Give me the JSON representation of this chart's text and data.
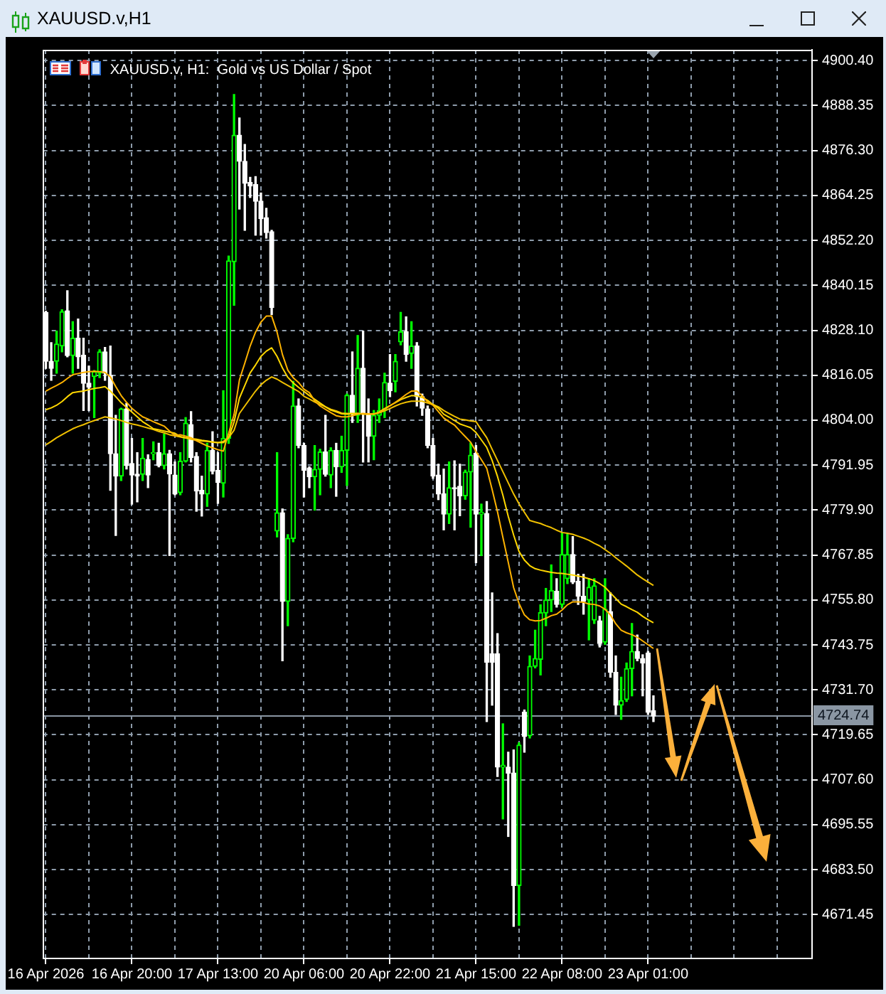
{
  "chart_data": {
    "type": "candlestick",
    "title": "XAUUSD.v,H1",
    "subtitle": "XAUUSD.v, H1:  Gold vs US Dollar / Spot",
    "categories": [
      "16 Apr 2026",
      null,
      null,
      null,
      null,
      null,
      null,
      null,
      null,
      null,
      null,
      null,
      null,
      null,
      null,
      null,
      "16 Apr 20:00",
      null,
      null,
      null,
      null,
      null,
      null,
      null,
      null,
      null,
      null,
      null,
      null,
      null,
      null,
      null,
      "17 Apr 13:00",
      null,
      null,
      null,
      null,
      null,
      null,
      null,
      null,
      null,
      null,
      null,
      null,
      null,
      null,
      null,
      "20 Apr 06:00",
      null,
      null,
      null,
      null,
      null,
      null,
      null,
      null,
      null,
      null,
      null,
      null,
      null,
      null,
      null,
      "20 Apr 22:00",
      null,
      null,
      null,
      null,
      null,
      null,
      null,
      null,
      null,
      null,
      null,
      null,
      null,
      null,
      null,
      "21 Apr 15:00",
      null,
      null,
      null,
      null,
      null,
      null,
      null,
      null,
      null,
      null,
      null,
      null,
      null,
      null,
      null,
      "22 Apr 08:00",
      null,
      null,
      null,
      null,
      null,
      null,
      null,
      null,
      null,
      null,
      null,
      null,
      null,
      null,
      null,
      "23 Apr 01:00",
      null
    ],
    "colors": [
      "#ffffff",
      "#ffffff",
      "#00ff00",
      "#00ff00",
      "#ffffff",
      "#00ff00",
      "#ffffff",
      "#ffffff",
      "#ffffff",
      "#00ff00",
      "#00ff00",
      "#ffffff",
      "#ffffff",
      "#ffffff",
      "#00ff00",
      "#ffffff",
      "#ffffff",
      "#ffffff",
      "#00ff00",
      "#ffffff",
      "#00ff00",
      "#ffffff",
      "#00ff00",
      "#ffffff",
      "#ffffff",
      "#00ff00",
      "#00ff00",
      "#ffffff",
      "#ffffff",
      "#ffffff",
      "#00ff00",
      "#ffffff",
      "#ffffff",
      "#00ff00",
      "#00ff00",
      "#00ff00",
      "#ffffff",
      "#ffffff",
      "#ffffff",
      "#ffffff",
      "#ffffff",
      "#ffffff",
      "#ffffff",
      "#00ff00",
      "#ffffff",
      "#00ff00",
      "#00ff00",
      "#ffffff",
      "#ffffff",
      "#ffffff",
      "#00ff00",
      "#00ff00",
      "#ffffff",
      "#00ff00",
      "#ffffff",
      "#00ff00",
      "#00ff00",
      "#ffffff",
      "#00ff00",
      "#ffffff",
      "#ffffff",
      "#00ff00",
      "#00ff00",
      "#00ff00",
      "#ffffff",
      "#00ff00",
      "#00ff00",
      "#ffffff",
      "#00ff00",
      "#ffffff",
      "#ffffff",
      "#ffffff",
      "#ffffff",
      "#ffffff",
      "#ffffff",
      "#00ff00",
      "#ffffff",
      "#ffffff",
      "#00ff00",
      "#00ff00",
      "#ffffff",
      "#00ff00",
      "#ffffff",
      "#ffffff",
      "#ffffff",
      "#00ff00",
      "#ffffff",
      "#ffffff",
      "#00ff00",
      "#ffffff",
      "#00ff00",
      "#00ff00",
      "#00ff00",
      "#00ff00",
      "#00ff00",
      "#ffffff",
      "#00ff00",
      "#00ff00",
      "#ffffff",
      "#ffffff",
      "#ffffff",
      "#00ff00",
      "#00ff00",
      "#ffffff",
      "#00ff00",
      "#ffffff",
      "#ffffff",
      "#00ff00",
      "#00ff00",
      "#00ff00",
      "#ffffff",
      "#ffffff",
      "#ffffff",
      "#ffffff"
    ],
    "ohlc": [
      [
        4832.9,
        4833.2,
        4817.9,
        4819.8
      ],
      [
        4819.8,
        4824.8,
        4814.7,
        4817.9
      ],
      [
        4819.8,
        4827.9,
        4816.6,
        4824.4
      ],
      [
        4823.9,
        4833.6,
        4822.3,
        4833.1
      ],
      [
        4833.3,
        4838.7,
        4821.0,
        4821.3
      ],
      [
        4821.3,
        4830.4,
        4816.6,
        4826.0
      ],
      [
        4826.0,
        4831.1,
        4817.9,
        4821.0
      ],
      [
        4821.4,
        4826.0,
        4806.6,
        4813.9
      ],
      [
        4813.9,
        4818.5,
        4806.6,
        4812.9
      ],
      [
        4815.7,
        4817.3,
        4804.7,
        4817.0
      ],
      [
        4816.6,
        4822.9,
        4815.4,
        4822.3
      ],
      [
        4822.3,
        4823.5,
        4814.7,
        4816.6
      ],
      [
        4816.0,
        4823.9,
        4785.2,
        4795.0
      ],
      [
        4795.0,
        4805.3,
        4773.1,
        4789.0
      ],
      [
        4789.0,
        4807.2,
        4787.8,
        4807.0
      ],
      [
        4807.0,
        4808.5,
        4790.9,
        4791.8
      ],
      [
        4792.4,
        4799.1,
        4781.5,
        4789.3
      ],
      [
        4789.5,
        4795.3,
        4782.1,
        4789.0
      ],
      [
        4789.5,
        4799.1,
        4787.8,
        4793.8
      ],
      [
        4793.5,
        4794.7,
        4785.9,
        4789.3
      ],
      [
        4795.0,
        4798.2,
        4793.4,
        4795.3
      ],
      [
        4795.3,
        4797.8,
        4791.5,
        4791.8
      ],
      [
        4791.8,
        4800.3,
        4790.9,
        4795.0
      ],
      [
        4795.0,
        4795.9,
        4767.7,
        4789.6
      ],
      [
        4789.3,
        4792.8,
        4784.0,
        4784.2
      ],
      [
        4784.6,
        4795.3,
        4784.0,
        4793.0
      ],
      [
        4793.0,
        4804.7,
        4792.8,
        4803.2
      ],
      [
        4802.8,
        4806.3,
        4792.8,
        4794.0
      ],
      [
        4794.3,
        4795.3,
        4779.6,
        4785.0
      ],
      [
        4785.2,
        4789.0,
        4778.3,
        4784.2
      ],
      [
        4784.2,
        4797.8,
        4780.9,
        4795.9
      ],
      [
        4795.9,
        4800.9,
        4789.6,
        4790.3
      ],
      [
        4790.5,
        4795.3,
        4781.7,
        4787.3
      ],
      [
        4787.1,
        4811.9,
        4783.4,
        4799.1
      ],
      [
        4799.1,
        4848.0,
        4797.8,
        4846.7
      ],
      [
        4846.5,
        4891.3,
        4834.8,
        4880.4
      ],
      [
        4880.4,
        4885.0,
        4860.6,
        4873.4
      ],
      [
        4873.4,
        4877.9,
        4854.9,
        4867.5
      ],
      [
        4867.7,
        4869.1,
        4863.7,
        4866.8
      ],
      [
        4867.2,
        4869.3,
        4853.6,
        4862.7
      ],
      [
        4862.7,
        4864.9,
        4853.6,
        4858.0
      ],
      [
        4858.3,
        4860.8,
        4852.8,
        4854.3
      ],
      [
        4854.5,
        4854.9,
        4832.3,
        4834.2
      ],
      [
        4774.3,
        4795.3,
        4772.7,
        4779.2
      ],
      [
        4779.2,
        4780.2,
        4739.5,
        4755.4
      ],
      [
        4755.4,
        4773.3,
        4748.9,
        4772.3
      ],
      [
        4772.3,
        4814.4,
        4771.4,
        4807.8
      ],
      [
        4807.8,
        4809.7,
        4796.6,
        4797.2
      ],
      [
        4797.2,
        4797.8,
        4783.4,
        4790.6
      ],
      [
        4791.2,
        4791.5,
        4785.9,
        4788.8
      ],
      [
        4788.8,
        4797.2,
        4779.9,
        4790.8
      ],
      [
        4790.8,
        4796.2,
        4784.0,
        4795.5
      ],
      [
        4795.5,
        4805.3,
        4789.0,
        4789.5
      ],
      [
        4789.3,
        4796.6,
        4785.9,
        4795.9
      ],
      [
        4795.9,
        4797.8,
        4783.6,
        4791.5
      ],
      [
        4791.5,
        4799.7,
        4790.0,
        4795.9
      ],
      [
        4795.9,
        4811.0,
        4786.5,
        4810.7
      ],
      [
        4810.7,
        4822.3,
        4803.4,
        4805.6
      ],
      [
        4805.3,
        4826.7,
        4803.4,
        4817.9
      ],
      [
        4817.9,
        4827.9,
        4792.8,
        4806.0
      ],
      [
        4805.7,
        4809.7,
        4792.8,
        4799.7
      ],
      [
        4799.7,
        4806.6,
        4793.4,
        4805.3
      ],
      [
        4805.3,
        4809.7,
        4803.4,
        4806.6
      ],
      [
        4806.6,
        4816.6,
        4804.7,
        4814.1
      ],
      [
        4813.9,
        4821.6,
        4810.3,
        4811.9
      ],
      [
        4814.4,
        4821.6,
        4811.6,
        4819.8
      ],
      [
        4825.0,
        4832.9,
        4824.2,
        4827.7
      ],
      [
        4827.7,
        4831.7,
        4819.8,
        4821.6
      ],
      [
        4821.9,
        4830.4,
        4817.9,
        4823.9
      ],
      [
        4823.9,
        4824.8,
        4807.8,
        4810.3
      ],
      [
        4810.3,
        4811.0,
        4805.3,
        4807.2
      ],
      [
        4807.0,
        4807.8,
        4796.6,
        4797.2
      ],
      [
        4797.2,
        4799.1,
        4788.4,
        4789.0
      ],
      [
        4789.3,
        4792.2,
        4782.7,
        4784.2
      ],
      [
        4784.3,
        4790.9,
        4774.6,
        4778.8
      ],
      [
        4778.8,
        4792.8,
        4776.3,
        4785.9
      ],
      [
        4785.9,
        4793.1,
        4774.6,
        4785.6
      ],
      [
        4786.3,
        4792.2,
        4778.4,
        4783.7
      ],
      [
        4783.7,
        4790.6,
        4782.8,
        4790.1
      ],
      [
        4790.1,
        4797.9,
        4775.3,
        4794.6
      ],
      [
        4795.1,
        4797.2,
        4765.8,
        4778.8
      ],
      [
        4778.8,
        4781.5,
        4767.7,
        4779.3
      ],
      [
        4779.0,
        4782.2,
        4723.2,
        4739.1
      ],
      [
        4741.4,
        4757.7,
        4727.6,
        4739.1
      ],
      [
        4741.4,
        4746.8,
        4708.5,
        4711.0
      ],
      [
        4711.0,
        4722.6,
        4697.1,
        4711.5
      ],
      [
        4711.0,
        4715.0,
        4692.4,
        4709.4
      ],
      [
        4709.4,
        4715.6,
        4668.3,
        4679.2
      ],
      [
        4679.2,
        4717.5,
        4668.6,
        4716.9
      ],
      [
        4725.7,
        4726.3,
        4715.0,
        4719.2
      ],
      [
        4719.4,
        4740.8,
        4718.8,
        4738.0
      ],
      [
        4738.0,
        4747.7,
        4737.6,
        4740.1
      ],
      [
        4739.9,
        4754.5,
        4735.7,
        4752.4
      ],
      [
        4752.3,
        4758.9,
        4748.9,
        4755.8
      ],
      [
        4755.8,
        4765.2,
        4752.7,
        4758.3
      ],
      [
        4758.1,
        4761.5,
        4753.9,
        4754.6
      ],
      [
        4754.6,
        4773.8,
        4753.9,
        4768.0
      ],
      [
        4761.5,
        4773.4,
        4760.2,
        4768.0
      ],
      [
        4768.0,
        4772.8,
        4760.2,
        4760.6
      ],
      [
        4760.8,
        4762.7,
        4754.6,
        4756.8
      ],
      [
        4756.8,
        4762.7,
        4752.0,
        4755.4
      ],
      [
        4755.8,
        4761.5,
        4745.1,
        4759.2
      ],
      [
        4750.4,
        4761.5,
        4749.5,
        4759.6
      ],
      [
        4750.2,
        4751.4,
        4743.2,
        4744.1
      ],
      [
        4744.5,
        4761.5,
        4743.9,
        4753.3
      ],
      [
        4752.7,
        4757.7,
        4735.1,
        4736.4
      ],
      [
        4736.4,
        4740.8,
        4725.1,
        4727.6
      ],
      [
        4727.6,
        4735.1,
        4723.8,
        4728.8
      ],
      [
        4729.1,
        4738.9,
        4728.6,
        4737.4
      ],
      [
        4737.4,
        4749.5,
        4730.1,
        4742.0
      ],
      [
        4742.0,
        4746.4,
        4739.5,
        4740.1
      ],
      [
        4740.1,
        4741.1,
        4730.1,
        4738.9
      ],
      [
        4741.6,
        4742.0,
        4725.1,
        4725.7
      ],
      [
        4726.1,
        4730.1,
        4723.2,
        4724.7
      ]
    ],
    "series": [
      {
        "type": "line",
        "color": "#ffb300",
        "values": [
          4811.8,
          4812.6,
          4813.3,
          4814.1,
          4815.2,
          4816.2,
          4816.5,
          4816.8,
          4817.0,
          4817.1,
          4817.0,
          4816.8,
          4815.6,
          4813.0,
          4810.6,
          4808.8,
          4807.2,
          4806.0,
          4804.9,
          4804.3,
          4803.6,
          4803.0,
          4802.4,
          4801.1,
          4799.9,
          4800.1,
          4799.7,
          4799.3,
          4798.5,
          4797.8,
          4797.1,
          4796.6,
          4796.1,
          4795.7,
          4800.5,
          4805.5,
          4814.8,
          4819.3,
          4823.9,
          4827.6,
          4830.3,
          4831.9,
          4831.9,
          4827.6,
          4821.6,
          4817.4,
          4815.4,
          4814.1,
          4812.3,
          4811.4,
          4809.2,
          4807.8,
          4806.9,
          4806.0,
          4805.2,
          4804.9,
          4804.9,
          4805.2,
          4805.6,
          4805.8,
          4805.7,
          4805.6,
          4806.0,
          4806.9,
          4807.8,
          4808.8,
          4809.8,
          4810.9,
          4811.8,
          4811.8,
          4810.5,
          4808.9,
          4808.0,
          4806.3,
          4804.6,
          4803.6,
          4802.7,
          4801.1,
          4799.6,
          4798.1,
          4795.6,
          4793.4,
          4791.1,
          4785.4,
          4779.4,
          4772.6,
          4765.9,
          4759.1,
          4754.9,
          4751.8,
          4750.5,
          4750.2,
          4750.3,
          4750.9,
          4751.6,
          4752.0,
          4753.1,
          4754.5,
          4755.3,
          4755.3,
          4755.2,
          4754.7,
          4754.6,
          4754.2,
          4753.3,
          4751.8,
          4749.4,
          4747.7,
          4747.0,
          4746.5,
          4745.8,
          4744.8,
          4743.8,
          4742.8
        ]
      },
      {
        "type": "line",
        "color": "#ffd700",
        "values": [
          4806.8,
          4807.3,
          4808.0,
          4809.0,
          4810.3,
          4811.4,
          4811.6,
          4811.8,
          4812.2,
          4812.5,
          4812.7,
          4813.0,
          4811.8,
          4810.3,
          4808.7,
          4807.4,
          4806.2,
          4804.9,
          4803.6,
          4802.7,
          4801.7,
          4801.4,
          4801.1,
          4800.8,
          4800.5,
          4799.6,
          4799.3,
          4799.1,
          4798.9,
          4798.6,
          4798.4,
          4798.2,
          4798.0,
          4798.0,
          4799.3,
          4803.5,
          4809.9,
          4813.3,
          4816.7,
          4818.8,
          4821.1,
          4822.5,
          4823.4,
          4821.1,
          4818.0,
          4815.5,
          4814.0,
          4812.8,
          4811.7,
          4810.6,
          4809.6,
          4808.6,
          4807.6,
          4806.7,
          4806.2,
          4805.7,
          4805.6,
          4805.7,
          4805.8,
          4805.7,
          4805.6,
          4805.6,
          4806.2,
          4807.1,
          4807.9,
          4808.7,
          4809.5,
          4810.1,
          4810.6,
          4810.5,
          4810.1,
          4809.3,
          4808.2,
          4807.2,
          4805.6,
          4804.8,
          4803.9,
          4803.0,
          4802.5,
          4802.0,
          4800.7,
          4798.7,
          4796.7,
          4793.2,
          4788.9,
          4783.9,
          4778.2,
          4773.2,
          4768.8,
          4766.5,
          4765.0,
          4764.2,
          4763.8,
          4763.5,
          4763.2,
          4763.0,
          4762.9,
          4762.7,
          4762.5,
          4762.2,
          4761.9,
          4761.5,
          4761.0,
          4760.2,
          4759.2,
          4757.7,
          4756.2,
          4754.7,
          4754.0,
          4753.2,
          4752.5,
          4751.4,
          4750.5,
          4749.7
        ]
      },
      {
        "type": "line",
        "color": "#f0c000",
        "values": [
          4797.4,
          4798.3,
          4799.3,
          4800.1,
          4800.9,
          4801.7,
          4802.3,
          4802.8,
          4803.4,
          4803.9,
          4804.4,
          4804.9,
          4804.6,
          4804.3,
          4803.9,
          4803.4,
          4803.0,
          4802.7,
          4802.3,
          4801.9,
          4801.5,
          4801.0,
          4800.6,
          4800.1,
          4799.8,
          4799.5,
          4799.2,
          4798.9,
          4798.6,
          4798.4,
          4798.3,
          4798.1,
          4798.0,
          4798.3,
          4799.3,
          4801.3,
          4805.8,
          4807.8,
          4809.8,
          4811.8,
          4813.5,
          4814.7,
          4815.6,
          4815.0,
          4814.1,
          4813.3,
          4812.5,
          4811.7,
          4810.4,
          4809.7,
          4808.9,
          4808.2,
          4807.6,
          4806.9,
          4806.5,
          4805.9,
          4805.8,
          4805.8,
          4805.8,
          4805.6,
          4805.6,
          4805.7,
          4806.0,
          4806.5,
          4807.1,
          4807.8,
          4808.4,
          4808.8,
          4809.1,
          4809.1,
          4809.1,
          4808.6,
          4808.2,
          4807.6,
          4806.6,
          4805.8,
          4805.0,
          4804.3,
          4804.1,
          4803.8,
          4803.6,
          4801.4,
          4799.3,
          4796.2,
          4793.2,
          4790.2,
          4787.2,
          4784.2,
          4781.6,
          4779.3,
          4777.1,
          4776.7,
          4776.3,
          4775.7,
          4775.2,
          4774.5,
          4773.9,
          4773.7,
          4773.4,
          4772.9,
          4772.4,
          4771.8,
          4771.0,
          4770.3,
          4769.3,
          4768.3,
          4767.1,
          4766.0,
          4764.9,
          4763.7,
          4762.5,
          4761.5,
          4760.6,
          4759.7
        ]
      }
    ],
    "ylim": [
      4659.7,
      4903.3
    ],
    "yticks": [
      {
        "value": 4900.4,
        "label": "4900.40"
      },
      4888.35,
      {
        "value": 4876.3,
        "label": "4876.30"
      },
      4864.25,
      {
        "value": 4852.2,
        "label": "4852.20"
      },
      4840.15,
      {
        "value": 4828.1,
        "label": "4828.10"
      },
      4816.05,
      {
        "value": 4804,
        "label": "4804.00"
      },
      4791.95,
      {
        "value": 4779.9,
        "label": "4779.90"
      },
      4767.85,
      {
        "value": 4755.8,
        "label": "4755.80"
      },
      4743.75,
      {
        "value": 4731.7,
        "label": "4731.70"
      },
      4719.65,
      {
        "value": 4707.6,
        "label": "4707.60"
      },
      4695.55,
      {
        "value": 4683.5,
        "label": "4683.50"
      },
      4671.45
    ],
    "grid": true,
    "ref_lines": [
      {
        "axis": "y",
        "value": 4724.74,
        "label": "4724.74",
        "color": "#8a96a3"
      }
    ]
  }
}
